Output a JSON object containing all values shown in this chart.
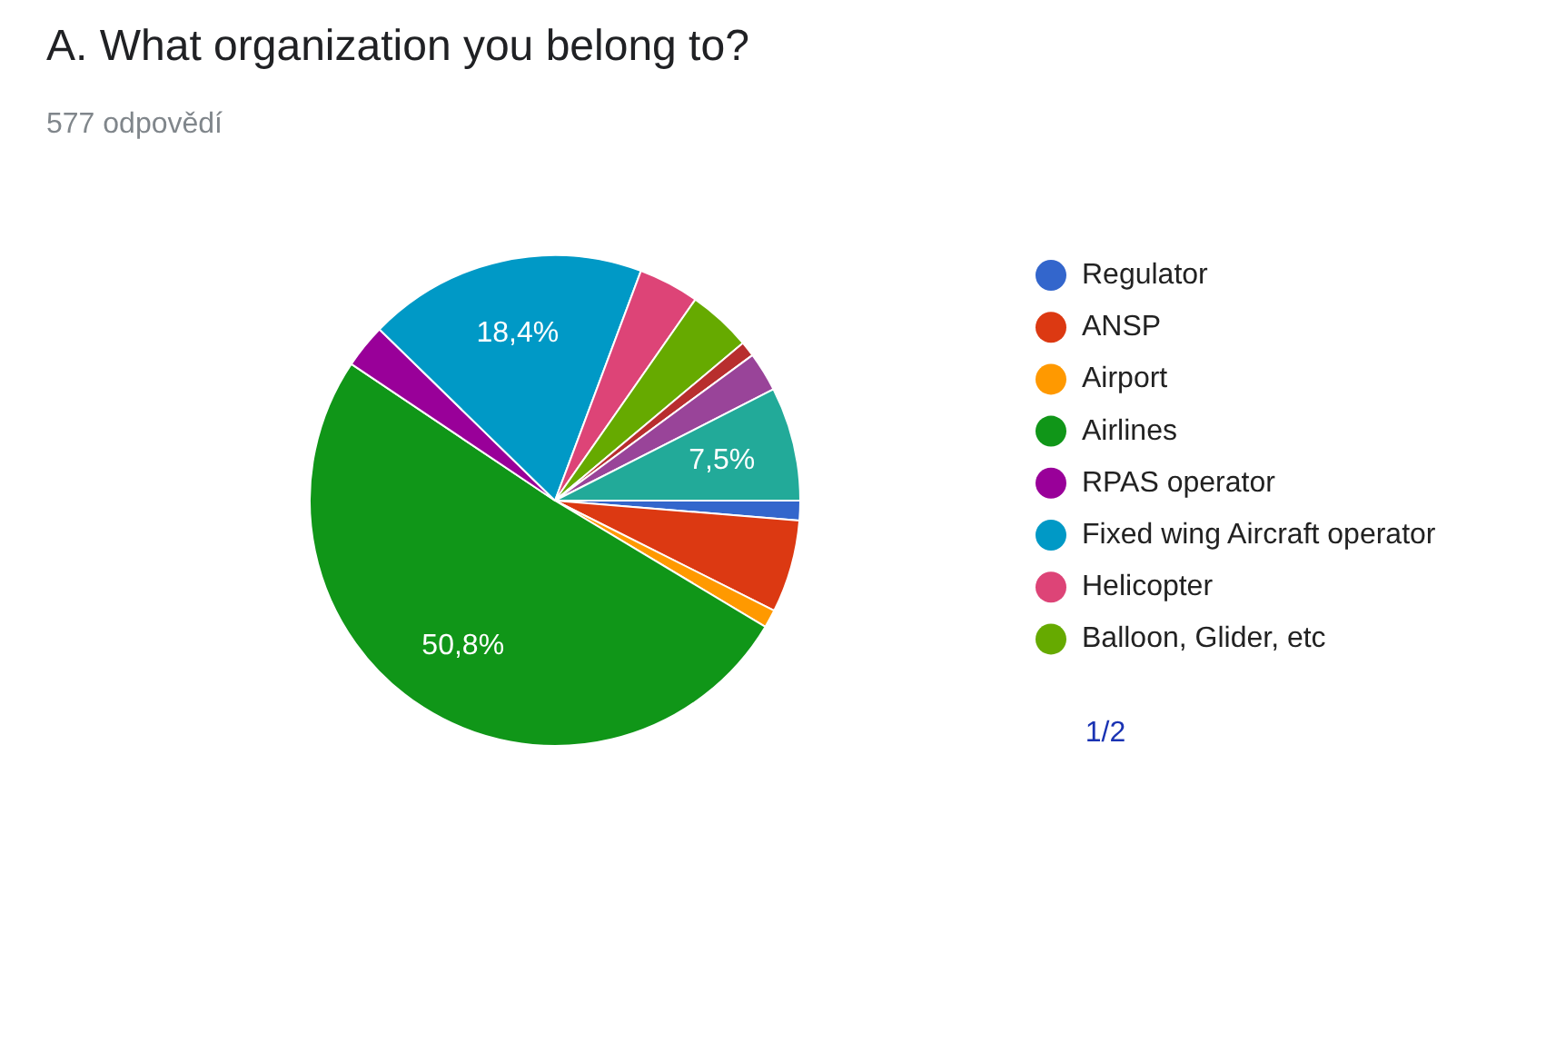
{
  "chart_data": {
    "type": "pie",
    "title": "A. What organization you belong to?",
    "subtitle": "577 odpovědí",
    "categories": [
      "Regulator",
      "ANSP",
      "Airport",
      "Airlines",
      "RPAS operator",
      "Fixed wing Aircraft operator",
      "Helicopter",
      "Balloon, Glider, etc",
      null,
      null,
      null
    ],
    "values": [
      1.3,
      6.1,
      1.2,
      50.8,
      2.9,
      18.4,
      4.0,
      4.2,
      1.0,
      2.6,
      7.5
    ],
    "value_labels": [
      null,
      null,
      null,
      "50,8%",
      null,
      "18,4%",
      null,
      null,
      null,
      null,
      "7,5%"
    ],
    "colors": [
      "#3366cc",
      "#dc3912",
      "#ff9900",
      "#109618",
      "#990099",
      "#0099c6",
      "#dd4477",
      "#66aa00",
      "#b82e2e",
      "#994499",
      "#22aa99"
    ],
    "legend": "right",
    "annotations": [
      "1/2"
    ]
  }
}
